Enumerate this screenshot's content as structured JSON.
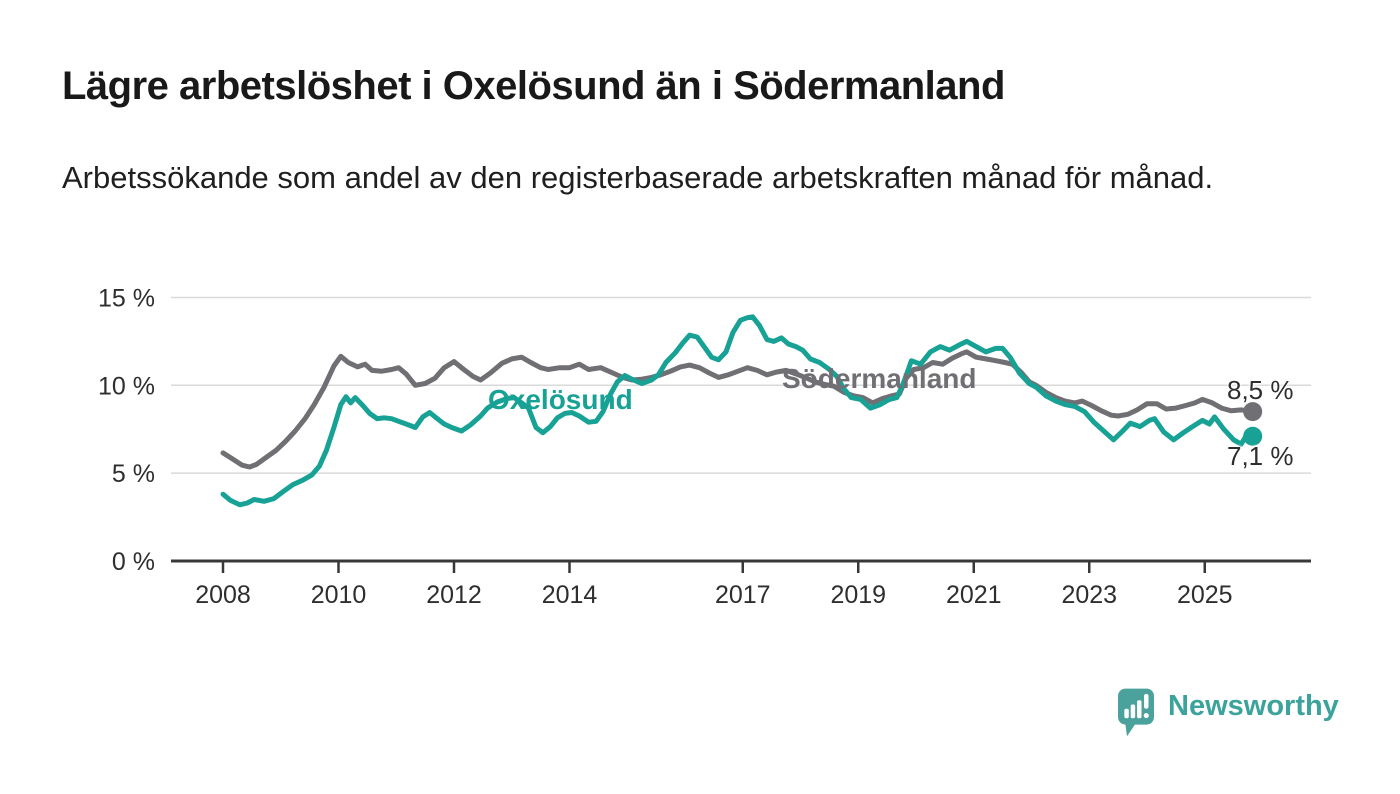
{
  "header": {
    "title": "Lägre arbetslöshet i Oxelösund än i Södermanland",
    "subtitle": "Arbetssökande som andel av den registerbaserade arbetskraften månad för månad."
  },
  "logo": {
    "brand": "Newsworthy"
  },
  "colors": {
    "oxelosund": "#17a295",
    "sodermanland": "#6f6f74",
    "gridline": "#dadada",
    "axis": "#383838",
    "axis_text": "#2e2e2e",
    "logo_teal": "#4ba19c",
    "logo_text": "#3ba39b"
  },
  "chart_data": {
    "type": "line",
    "title": "Lägre arbetslöshet i Oxelösund än i Södermanland",
    "xlabel": "",
    "ylabel": "",
    "x_unit": "decimal year (monthly data)",
    "xlim": [
      2007.1,
      2026.9
    ],
    "ylim": [
      0,
      15
    ],
    "grid": true,
    "legend_position": "inline-labels",
    "y_ticks": [
      {
        "value": 0,
        "label": "0 %"
      },
      {
        "value": 5,
        "label": "5 %"
      },
      {
        "value": 10,
        "label": "10 %"
      },
      {
        "value": 15,
        "label": "15 %"
      }
    ],
    "x_ticks": [
      {
        "value": 2008,
        "label": "2008"
      },
      {
        "value": 2010,
        "label": "2010"
      },
      {
        "value": 2012,
        "label": "2012"
      },
      {
        "value": 2014,
        "label": "2014"
      },
      {
        "value": 2017,
        "label": "2017"
      },
      {
        "value": 2019,
        "label": "2019"
      },
      {
        "value": 2021,
        "label": "2021"
      },
      {
        "value": 2023,
        "label": "2023"
      },
      {
        "value": 2025,
        "label": "2025"
      }
    ],
    "series": [
      {
        "name": "Södermanland",
        "color": "#6f6f74",
        "end_value": 8.5,
        "end_label": "8,5 %",
        "points": [
          [
            2008.0,
            6.15
          ],
          [
            2008.17,
            5.8
          ],
          [
            2008.33,
            5.45
          ],
          [
            2008.46,
            5.35
          ],
          [
            2008.58,
            5.5
          ],
          [
            2008.75,
            5.9
          ],
          [
            2008.92,
            6.3
          ],
          [
            2009.08,
            6.8
          ],
          [
            2009.25,
            7.4
          ],
          [
            2009.42,
            8.1
          ],
          [
            2009.58,
            8.9
          ],
          [
            2009.75,
            9.9
          ],
          [
            2009.92,
            11.1
          ],
          [
            2010.04,
            11.65
          ],
          [
            2010.17,
            11.3
          ],
          [
            2010.33,
            11.05
          ],
          [
            2010.46,
            11.2
          ],
          [
            2010.58,
            10.85
          ],
          [
            2010.75,
            10.8
          ],
          [
            2010.92,
            10.9
          ],
          [
            2011.04,
            11.0
          ],
          [
            2011.17,
            10.65
          ],
          [
            2011.33,
            10.0
          ],
          [
            2011.5,
            10.1
          ],
          [
            2011.67,
            10.4
          ],
          [
            2011.83,
            11.0
          ],
          [
            2012.0,
            11.35
          ],
          [
            2012.17,
            10.9
          ],
          [
            2012.33,
            10.5
          ],
          [
            2012.46,
            10.3
          ],
          [
            2012.63,
            10.7
          ],
          [
            2012.83,
            11.25
          ],
          [
            2013.0,
            11.5
          ],
          [
            2013.17,
            11.6
          ],
          [
            2013.33,
            11.3
          ],
          [
            2013.5,
            11.0
          ],
          [
            2013.63,
            10.9
          ],
          [
            2013.83,
            11.0
          ],
          [
            2014.0,
            11.0
          ],
          [
            2014.17,
            11.2
          ],
          [
            2014.33,
            10.9
          ],
          [
            2014.54,
            11.0
          ],
          [
            2014.75,
            10.7
          ],
          [
            2014.92,
            10.45
          ],
          [
            2015.08,
            10.3
          ],
          [
            2015.25,
            10.35
          ],
          [
            2015.42,
            10.45
          ],
          [
            2015.58,
            10.6
          ],
          [
            2015.75,
            10.8
          ],
          [
            2015.92,
            11.05
          ],
          [
            2016.08,
            11.15
          ],
          [
            2016.25,
            11.0
          ],
          [
            2016.42,
            10.7
          ],
          [
            2016.58,
            10.45
          ],
          [
            2016.75,
            10.6
          ],
          [
            2016.92,
            10.8
          ],
          [
            2017.08,
            11.0
          ],
          [
            2017.25,
            10.85
          ],
          [
            2017.42,
            10.6
          ],
          [
            2017.58,
            10.75
          ],
          [
            2017.75,
            10.85
          ],
          [
            2017.92,
            10.65
          ],
          [
            2018.08,
            10.45
          ],
          [
            2018.25,
            10.2
          ],
          [
            2018.42,
            10.05
          ],
          [
            2018.58,
            9.95
          ],
          [
            2018.75,
            9.6
          ],
          [
            2018.92,
            9.4
          ],
          [
            2019.08,
            9.3
          ],
          [
            2019.25,
            9.0
          ],
          [
            2019.42,
            9.25
          ],
          [
            2019.58,
            9.4
          ],
          [
            2019.71,
            9.5
          ],
          [
            2019.83,
            10.4
          ],
          [
            2019.96,
            10.9
          ],
          [
            2020.13,
            11.0
          ],
          [
            2020.29,
            11.3
          ],
          [
            2020.46,
            11.2
          ],
          [
            2020.63,
            11.55
          ],
          [
            2020.79,
            11.8
          ],
          [
            2020.88,
            11.9
          ],
          [
            2021.04,
            11.6
          ],
          [
            2021.21,
            11.5
          ],
          [
            2021.38,
            11.4
          ],
          [
            2021.54,
            11.3
          ],
          [
            2021.67,
            11.2
          ],
          [
            2021.83,
            10.7
          ],
          [
            2021.96,
            10.2
          ],
          [
            2022.08,
            10.0
          ],
          [
            2022.25,
            9.6
          ],
          [
            2022.42,
            9.3
          ],
          [
            2022.58,
            9.1
          ],
          [
            2022.75,
            9.0
          ],
          [
            2022.88,
            9.1
          ],
          [
            2023.04,
            8.85
          ],
          [
            2023.21,
            8.55
          ],
          [
            2023.38,
            8.3
          ],
          [
            2023.5,
            8.25
          ],
          [
            2023.67,
            8.35
          ],
          [
            2023.83,
            8.6
          ],
          [
            2024.0,
            8.95
          ],
          [
            2024.17,
            8.95
          ],
          [
            2024.33,
            8.65
          ],
          [
            2024.5,
            8.7
          ],
          [
            2024.67,
            8.85
          ],
          [
            2024.83,
            9.0
          ],
          [
            2024.96,
            9.2
          ],
          [
            2025.13,
            9.0
          ],
          [
            2025.29,
            8.7
          ],
          [
            2025.46,
            8.55
          ],
          [
            2025.63,
            8.6
          ],
          [
            2025.75,
            8.55
          ],
          [
            2025.83,
            8.5
          ]
        ]
      },
      {
        "name": "Oxelösund",
        "color": "#17a295",
        "end_value": 7.1,
        "end_label": "7,1 %",
        "points": [
          [
            2008.0,
            3.8
          ],
          [
            2008.13,
            3.45
          ],
          [
            2008.29,
            3.2
          ],
          [
            2008.42,
            3.3
          ],
          [
            2008.54,
            3.5
          ],
          [
            2008.71,
            3.4
          ],
          [
            2008.88,
            3.55
          ],
          [
            2009.04,
            3.95
          ],
          [
            2009.21,
            4.35
          ],
          [
            2009.38,
            4.6
          ],
          [
            2009.54,
            4.9
          ],
          [
            2009.67,
            5.4
          ],
          [
            2009.79,
            6.3
          ],
          [
            2009.92,
            7.6
          ],
          [
            2010.04,
            8.9
          ],
          [
            2010.13,
            9.35
          ],
          [
            2010.21,
            9.0
          ],
          [
            2010.29,
            9.3
          ],
          [
            2010.42,
            8.85
          ],
          [
            2010.54,
            8.4
          ],
          [
            2010.67,
            8.1
          ],
          [
            2010.79,
            8.15
          ],
          [
            2010.92,
            8.1
          ],
          [
            2011.04,
            7.95
          ],
          [
            2011.17,
            7.8
          ],
          [
            2011.33,
            7.6
          ],
          [
            2011.46,
            8.2
          ],
          [
            2011.58,
            8.45
          ],
          [
            2011.71,
            8.1
          ],
          [
            2011.83,
            7.8
          ],
          [
            2011.96,
            7.6
          ],
          [
            2012.13,
            7.4
          ],
          [
            2012.29,
            7.75
          ],
          [
            2012.46,
            8.25
          ],
          [
            2012.58,
            8.7
          ],
          [
            2012.75,
            9.05
          ],
          [
            2012.92,
            9.25
          ],
          [
            2013.04,
            9.3
          ],
          [
            2013.17,
            9.0
          ],
          [
            2013.29,
            8.7
          ],
          [
            2013.42,
            7.6
          ],
          [
            2013.54,
            7.3
          ],
          [
            2013.67,
            7.65
          ],
          [
            2013.79,
            8.15
          ],
          [
            2013.92,
            8.4
          ],
          [
            2014.04,
            8.45
          ],
          [
            2014.17,
            8.25
          ],
          [
            2014.33,
            7.9
          ],
          [
            2014.46,
            7.95
          ],
          [
            2014.58,
            8.5
          ],
          [
            2014.71,
            9.5
          ],
          [
            2014.83,
            10.2
          ],
          [
            2014.96,
            10.55
          ],
          [
            2015.08,
            10.35
          ],
          [
            2015.25,
            10.1
          ],
          [
            2015.42,
            10.3
          ],
          [
            2015.54,
            10.6
          ],
          [
            2015.67,
            11.3
          ],
          [
            2015.83,
            11.85
          ],
          [
            2015.96,
            12.4
          ],
          [
            2016.08,
            12.85
          ],
          [
            2016.21,
            12.75
          ],
          [
            2016.33,
            12.2
          ],
          [
            2016.46,
            11.6
          ],
          [
            2016.58,
            11.45
          ],
          [
            2016.71,
            11.9
          ],
          [
            2016.83,
            13.0
          ],
          [
            2016.96,
            13.7
          ],
          [
            2017.08,
            13.85
          ],
          [
            2017.17,
            13.9
          ],
          [
            2017.29,
            13.4
          ],
          [
            2017.42,
            12.6
          ],
          [
            2017.54,
            12.5
          ],
          [
            2017.67,
            12.7
          ],
          [
            2017.79,
            12.35
          ],
          [
            2017.92,
            12.2
          ],
          [
            2018.04,
            12.0
          ],
          [
            2018.17,
            11.5
          ],
          [
            2018.33,
            11.3
          ],
          [
            2018.5,
            10.9
          ],
          [
            2018.63,
            10.5
          ],
          [
            2018.75,
            9.8
          ],
          [
            2018.88,
            9.3
          ],
          [
            2019.04,
            9.2
          ],
          [
            2019.21,
            8.7
          ],
          [
            2019.38,
            8.9
          ],
          [
            2019.54,
            9.2
          ],
          [
            2019.67,
            9.3
          ],
          [
            2019.79,
            10.2
          ],
          [
            2019.92,
            11.4
          ],
          [
            2020.08,
            11.2
          ],
          [
            2020.25,
            11.9
          ],
          [
            2020.42,
            12.2
          ],
          [
            2020.58,
            12.0
          ],
          [
            2020.75,
            12.3
          ],
          [
            2020.88,
            12.5
          ],
          [
            2021.04,
            12.2
          ],
          [
            2021.21,
            11.9
          ],
          [
            2021.38,
            12.1
          ],
          [
            2021.5,
            12.1
          ],
          [
            2021.63,
            11.6
          ],
          [
            2021.79,
            10.7
          ],
          [
            2021.96,
            10.1
          ],
          [
            2022.08,
            9.9
          ],
          [
            2022.25,
            9.4
          ],
          [
            2022.42,
            9.1
          ],
          [
            2022.58,
            8.9
          ],
          [
            2022.75,
            8.8
          ],
          [
            2022.92,
            8.5
          ],
          [
            2023.08,
            7.9
          ],
          [
            2023.25,
            7.4
          ],
          [
            2023.42,
            6.9
          ],
          [
            2023.58,
            7.4
          ],
          [
            2023.71,
            7.85
          ],
          [
            2023.88,
            7.65
          ],
          [
            2024.04,
            8.0
          ],
          [
            2024.13,
            8.1
          ],
          [
            2024.29,
            7.35
          ],
          [
            2024.46,
            6.9
          ],
          [
            2024.63,
            7.3
          ],
          [
            2024.79,
            7.65
          ],
          [
            2024.96,
            8.0
          ],
          [
            2025.08,
            7.8
          ],
          [
            2025.17,
            8.2
          ],
          [
            2025.33,
            7.5
          ],
          [
            2025.5,
            6.9
          ],
          [
            2025.63,
            6.65
          ],
          [
            2025.75,
            7.3
          ],
          [
            2025.83,
            7.1
          ]
        ]
      }
    ]
  }
}
